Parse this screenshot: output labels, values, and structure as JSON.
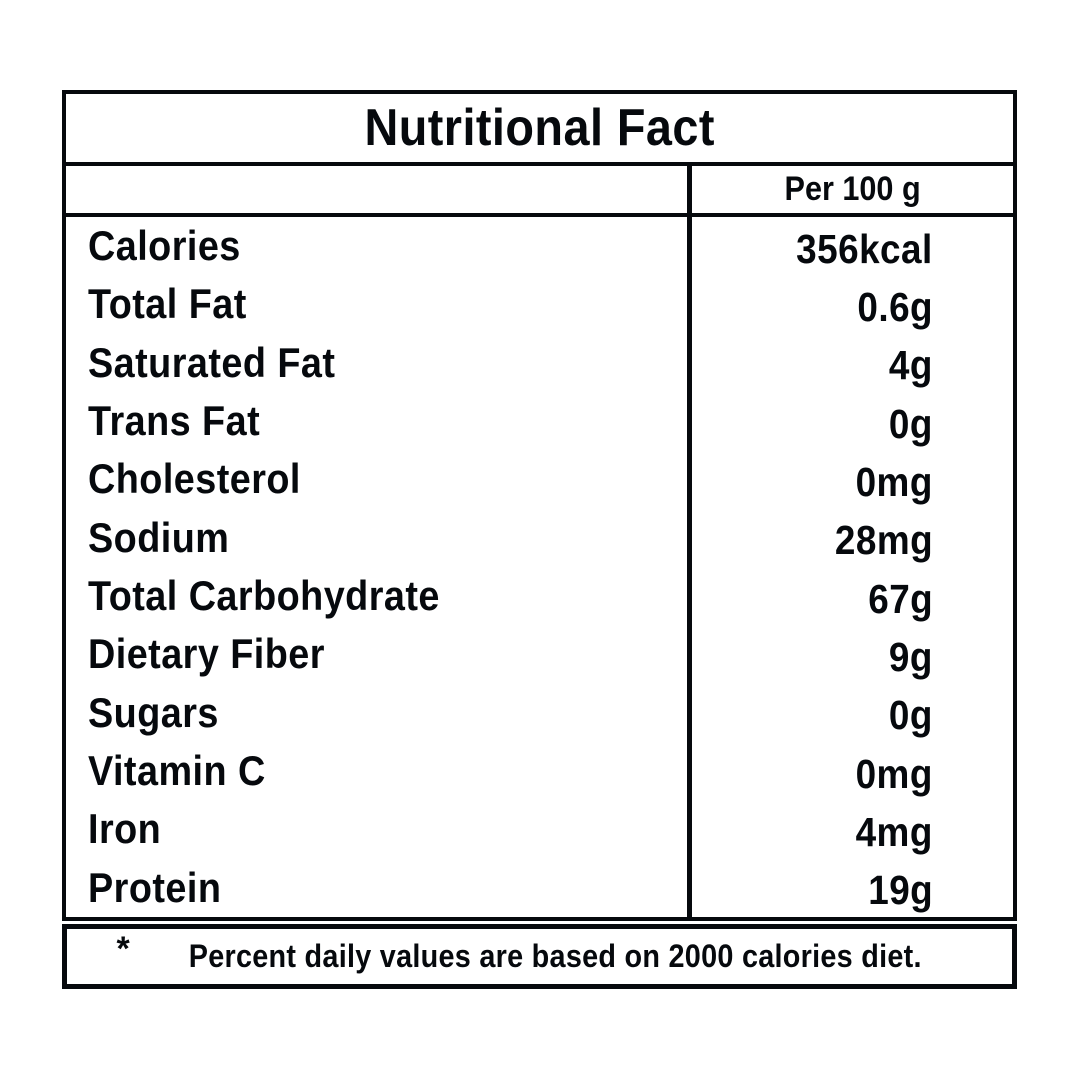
{
  "title": "Nutritional Fact",
  "column_header": "Per 100 g",
  "rows": [
    {
      "label": "Calories",
      "value": "356kcal"
    },
    {
      "label": "Total Fat",
      "value": "0.6g"
    },
    {
      "label": "Saturated Fat",
      "value": "4g"
    },
    {
      "label": "Trans Fat",
      "value": "0g"
    },
    {
      "label": "Cholesterol",
      "value": "0mg"
    },
    {
      "label": "Sodium",
      "value": "28mg"
    },
    {
      "label": "Total Carbohydrate",
      "value": "67g"
    },
    {
      "label": "Dietary Fiber",
      "value": "9g"
    },
    {
      "label": "Sugars",
      "value": "0g"
    },
    {
      "label": "Vitamin C",
      "value": "0mg"
    },
    {
      "label": "Iron",
      "value": "4mg"
    },
    {
      "label": "Protein",
      "value": "19g"
    }
  ],
  "footnote": {
    "marker": "*",
    "text": "Percent daily values are based on 2000 calories diet."
  },
  "colors": {
    "ink": "#06090d",
    "background": "#ffffff"
  }
}
